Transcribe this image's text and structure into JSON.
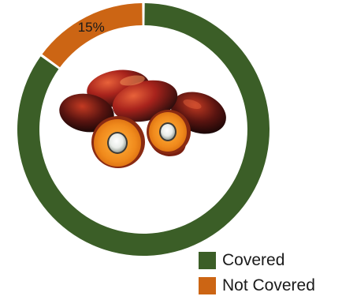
{
  "chart_data": {
    "type": "pie",
    "donut": true,
    "title": "",
    "categories": [
      "Covered",
      "Not Covered"
    ],
    "values": [
      85,
      15
    ],
    "colors": [
      "#3b5e27",
      "#cc6514"
    ],
    "data_labels": [
      "",
      "15%"
    ],
    "legend_position": "bottom-right",
    "center_image": "palm-fruit-image"
  },
  "legend": {
    "items": [
      {
        "label": "Covered",
        "color": "#3b5e27"
      },
      {
        "label": "Not Covered",
        "color": "#cc6514"
      }
    ]
  }
}
